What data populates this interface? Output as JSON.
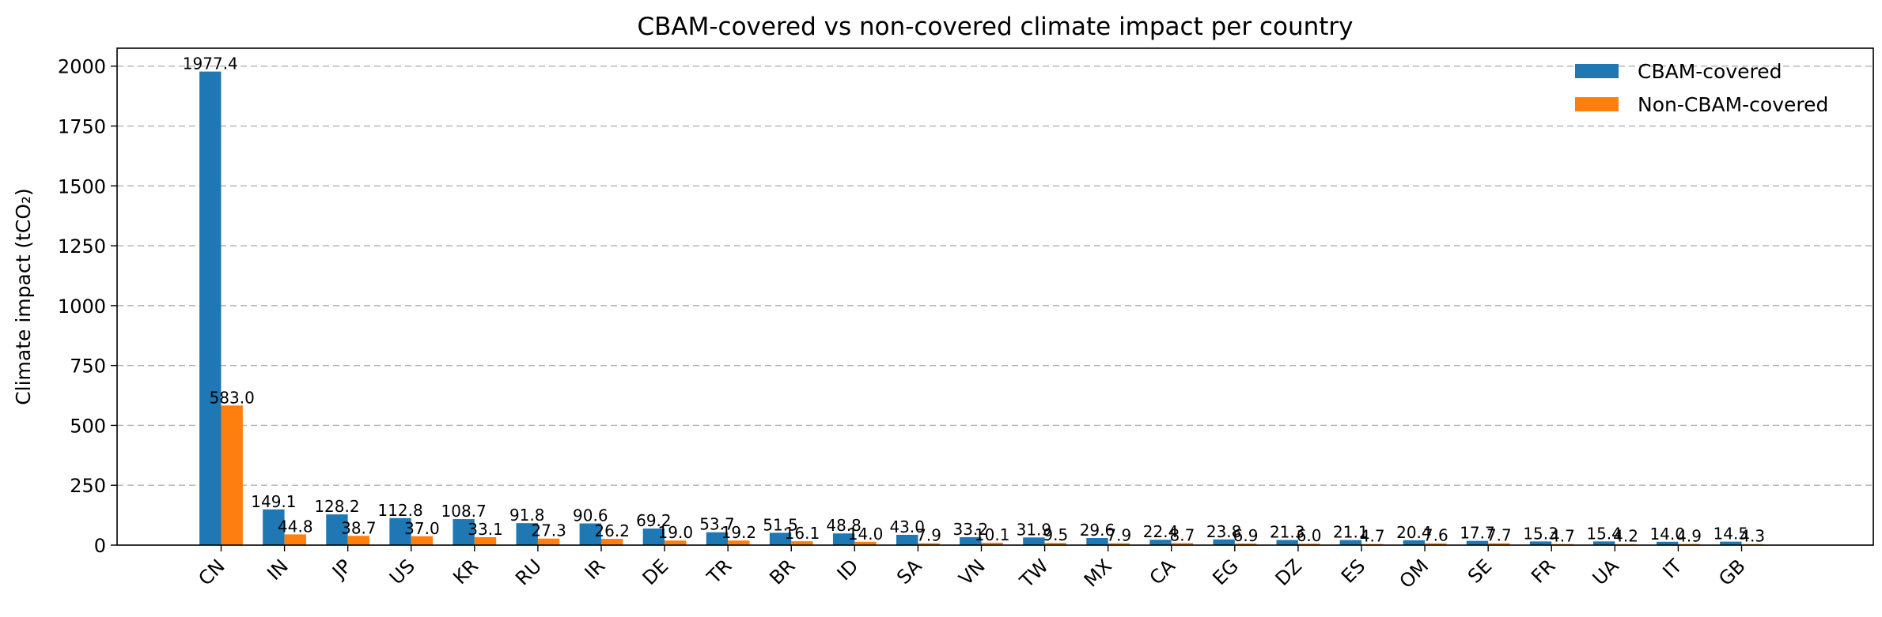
{
  "chart_data": {
    "type": "bar",
    "title": "CBAM-covered vs non-covered climate impact per country",
    "xlabel": "",
    "ylabel": "Climate impact (tCO₂)",
    "categories": [
      "CN",
      "IN",
      "JP",
      "US",
      "KR",
      "RU",
      "IR",
      "DE",
      "TR",
      "BR",
      "ID",
      "SA",
      "VN",
      "TW",
      "MX",
      "CA",
      "EG",
      "DZ",
      "ES",
      "OM",
      "SE",
      "FR",
      "UA",
      "IT",
      "GB"
    ],
    "series": [
      {
        "name": "CBAM-covered",
        "color": "#1f77b4",
        "values": [
          1977.4,
          149.1,
          128.2,
          112.8,
          108.7,
          91.8,
          90.6,
          69.2,
          53.7,
          51.5,
          48.8,
          43.0,
          33.2,
          31.9,
          29.6,
          22.4,
          23.8,
          21.3,
          21.1,
          20.4,
          17.7,
          15.3,
          15.4,
          14.0,
          14.5
        ],
        "labels": [
          "1977.4",
          "149.1",
          "128.2",
          "112.8",
          "108.7",
          "91.8",
          "90.6",
          "69.2",
          "53.7",
          "51.5",
          "48.8",
          "43.0",
          "33.2",
          "31.9",
          "29.6",
          "22.4",
          "23.8",
          "21.3",
          "21.1",
          "20.4",
          "17.7",
          "15.3",
          "15.4",
          "14.0",
          "14.5"
        ]
      },
      {
        "name": "Non-CBAM-covered",
        "color": "#ff7f0e",
        "values": [
          583.0,
          44.8,
          38.7,
          37.0,
          33.1,
          27.3,
          26.2,
          19.0,
          19.2,
          16.1,
          14.0,
          7.9,
          10.1,
          9.5,
          7.9,
          8.7,
          6.9,
          6.0,
          4.7,
          7.6,
          7.7,
          4.7,
          4.2,
          4.9,
          4.3
        ],
        "labels": [
          "583.0",
          "44.8",
          "38.7",
          "37.0",
          "33.1",
          "27.3",
          "26.2",
          "19.0",
          "19.2",
          "16.1",
          "14.0",
          "7.9",
          "10.1",
          "9.5",
          "7.9",
          "8.7",
          "6.9",
          "6.0",
          "4.7",
          "7.6",
          "7.7",
          "4.7",
          "4.2",
          "4.9",
          "4.3"
        ]
      }
    ],
    "ylim": [
      0,
      2075
    ],
    "yticks": [
      0,
      250,
      500,
      750,
      1000,
      1250,
      1500,
      1750,
      2000
    ],
    "ytick_labels": [
      "0",
      "250",
      "500",
      "750",
      "1000",
      "1250",
      "1500",
      "1750",
      "2000"
    ],
    "grid": "y-dashed",
    "legend_position": "top-right"
  }
}
